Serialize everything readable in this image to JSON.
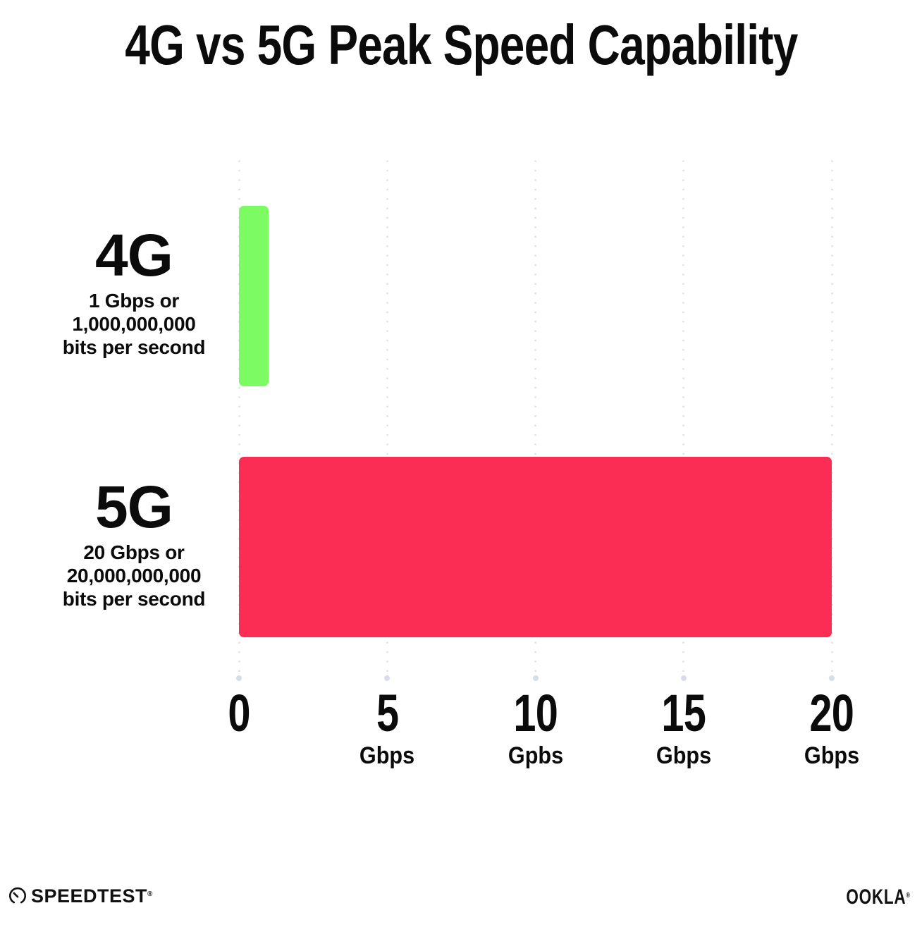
{
  "title": "4G vs 5G Peak Speed Capability",
  "chart_data": {
    "type": "bar",
    "orientation": "horizontal",
    "title": "4G vs 5G Peak Speed Capability",
    "categories": [
      "4G",
      "5G"
    ],
    "values": [
      1,
      20
    ],
    "value_unit": "Gbps",
    "xlabel": "",
    "ylabel": "",
    "xlim": [
      0,
      20
    ],
    "x_ticks": [
      0,
      5,
      10,
      15,
      20
    ],
    "grid": "dotted vertical gridlines, light lavender",
    "legend_position": "none",
    "bar_colors": {
      "4G": "#7dfb62",
      "5G": "#fb2d55"
    },
    "annotations": [
      "4G: 1 Gbps or 1,000,000,000 bits per second",
      "5G: 20 Gbps or 20,000,000,000 bits per second"
    ]
  },
  "rows": [
    {
      "label": "4G",
      "desc_line1": "1 Gbps or",
      "desc_line2": "1,000,000,000",
      "desc_line3": "bits per second",
      "value": 1,
      "color": "#7dfb62"
    },
    {
      "label": "5G",
      "desc_line1": "20 Gbps or",
      "desc_line2": "20,000,000,000",
      "desc_line3": "bits per second",
      "value": 20,
      "color": "#fb2d55"
    }
  ],
  "x_axis": {
    "ticks": [
      {
        "num": "0",
        "unit": ""
      },
      {
        "num": "5",
        "unit": "Gbps"
      },
      {
        "num": "10",
        "unit": "Gpbs"
      },
      {
        "num": "15",
        "unit": "Gbps"
      },
      {
        "num": "20",
        "unit": "Gbps"
      }
    ]
  },
  "footer": {
    "speedtest_label": "SPEEDTEST",
    "speedtest_trademark": "®",
    "ookla_label": "OOKLA",
    "ookla_trademark": "®"
  },
  "colors": {
    "background": "#ffffff",
    "text": "#0b0b0b",
    "grid_dot": "#e1e2ec",
    "grid_end_dot": "#d7dcea",
    "bar_4g": "#7dfb62",
    "bar_5g": "#fb2d55"
  }
}
